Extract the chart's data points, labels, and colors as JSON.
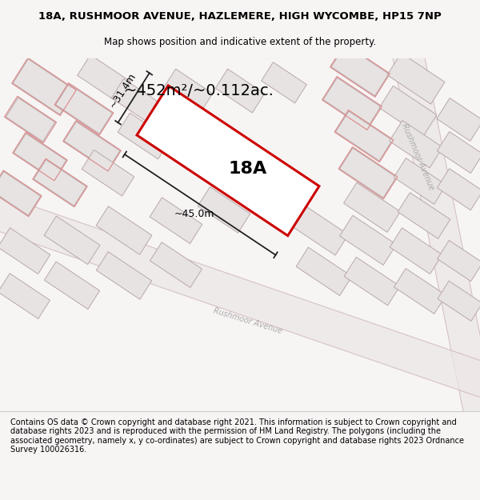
{
  "title_line1": "18A, RUSHMOOR AVENUE, HAZLEMERE, HIGH WYCOMBE, HP15 7NP",
  "title_line2": "Map shows position and indicative extent of the property.",
  "footer_text": "Contains OS data © Crown copyright and database right 2021. This information is subject to Crown copyright and database rights 2023 and is reproduced with the permission of HM Land Registry. The polygons (including the associated geometry, namely x, y co-ordinates) are subject to Crown copyright and database rights 2023 Ordnance Survey 100026316.",
  "area_label": "~452m²/~0.112ac.",
  "property_label": "18A",
  "dim_width": "~45.0m",
  "dim_height": "~31.4m",
  "red_color": "#cc0000",
  "road_label_right": "Rushmoor Avenue",
  "road_label_bottom": "Rushmoor Avenue",
  "map_bg": "#f2eeee",
  "title_bg": "#f7f4f4",
  "footer_bg": "#ffffff",
  "building_fill": "#e8e3e3",
  "building_edge_gray": "#b8a8a8",
  "building_edge_pink": "#d89090",
  "dim_line_color": "#222222",
  "road_label_color": "#aaaaaa"
}
